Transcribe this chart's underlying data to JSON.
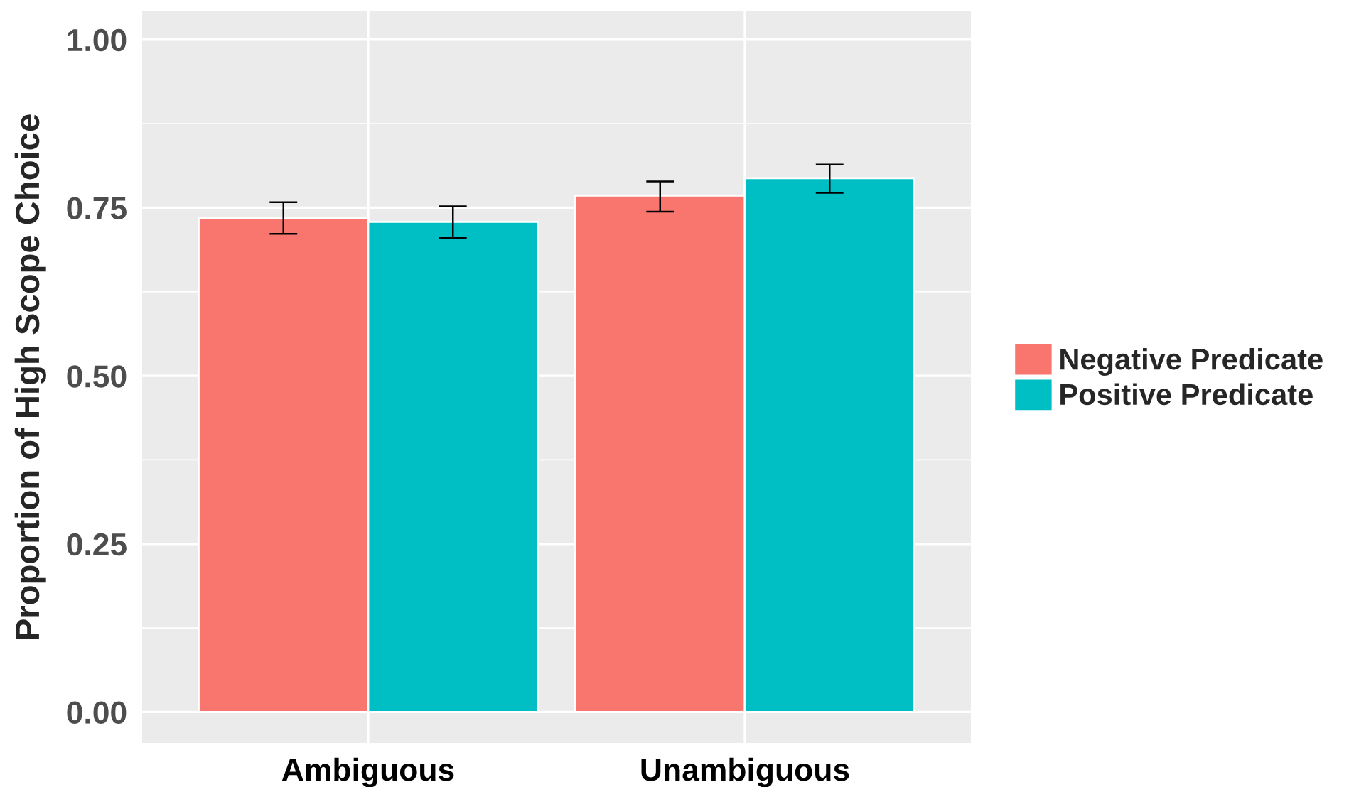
{
  "chart_data": {
    "type": "bar",
    "ylabel": "Proportion of High Scope Choice",
    "categories": [
      "Ambiguous",
      "Unambiguous"
    ],
    "series": [
      {
        "name": "Negative Predicate",
        "color": "#f8766d",
        "values": [
          0.735,
          0.768
        ],
        "errors": [
          [
            0.711,
            0.758
          ],
          [
            0.744,
            0.789
          ]
        ]
      },
      {
        "name": "Positive Predicate",
        "color": "#00bfc4",
        "values": [
          0.729,
          0.794
        ],
        "errors": [
          [
            0.705,
            0.752
          ],
          [
            0.772,
            0.814
          ]
        ]
      }
    ],
    "ylim": [
      -0.046,
      1.042
    ],
    "yticks": [
      {
        "value": 0,
        "label": "0.00"
      },
      {
        "value": 0.25,
        "label": "0.25"
      },
      {
        "value": 0.5,
        "label": "0.50"
      },
      {
        "value": 0.75,
        "label": "0.75"
      },
      {
        "value": 1,
        "label": "1.00"
      }
    ],
    "grid": true,
    "legend": "right"
  }
}
